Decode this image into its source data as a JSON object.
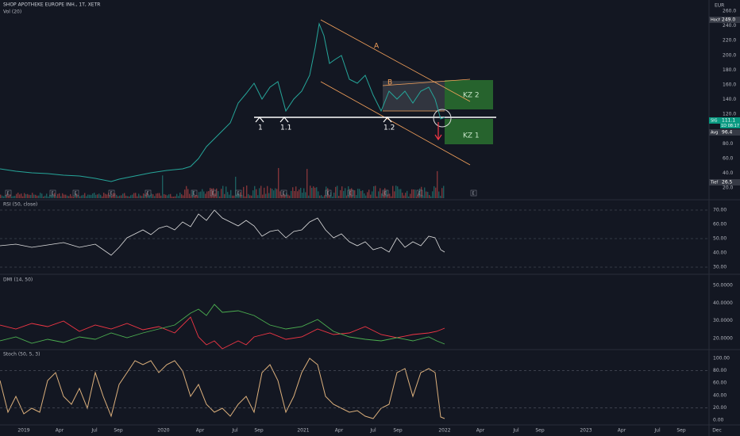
{
  "header": {
    "title": "SHOP APOTHEKE EUROPE INH., 1T, XETR",
    "volume": "Vol (20)",
    "currency": "EUR"
  },
  "price_axis": [
    "260.0",
    "240.0",
    "220.0",
    "200.0",
    "180.0",
    "160.0",
    "140.0",
    "120.0",
    "80.0",
    "60.0",
    "40.0",
    "20.0"
  ],
  "price_labels": {
    "high_tag": "Hoch",
    "high": "249.0",
    "last_tag": "SIG",
    "last": "111.1",
    "last_time": "1D 08:17",
    "avg_tag": "Avg",
    "avg": "96.4",
    "low_tag": "Tief",
    "low": "26.5"
  },
  "annotations": {
    "a": "A",
    "b": "B",
    "p1": "1",
    "p11": "1.1",
    "p12": "1.2",
    "kz2": "KZ 2",
    "kz1": "KZ 1"
  },
  "earnings_marker": "E",
  "rsi": {
    "title": "RSI (50, close)",
    "ticks": [
      "70.00",
      "60.00",
      "50.00",
      "40.00",
      "30.00"
    ]
  },
  "dmi": {
    "title": "DMI (14, 50)",
    "ticks": [
      "50.0000",
      "40.0000",
      "30.0000",
      "20.0000"
    ]
  },
  "stoch": {
    "title": "Stoch (50, 5, 3)",
    "ticks": [
      "100.00",
      "80.00",
      "60.00",
      "40.00",
      "20.00",
      "0.00"
    ]
  },
  "time_axis": [
    "2019",
    "Apr",
    "Jul",
    "Sep",
    "2020",
    "Apr",
    "Jul",
    "Sep",
    "2021",
    "Apr",
    "Jul",
    "Sep",
    "2022",
    "Apr",
    "Jul",
    "Sep",
    "2023",
    "Apr",
    "Jul",
    "Sep",
    "Dec"
  ]
}
